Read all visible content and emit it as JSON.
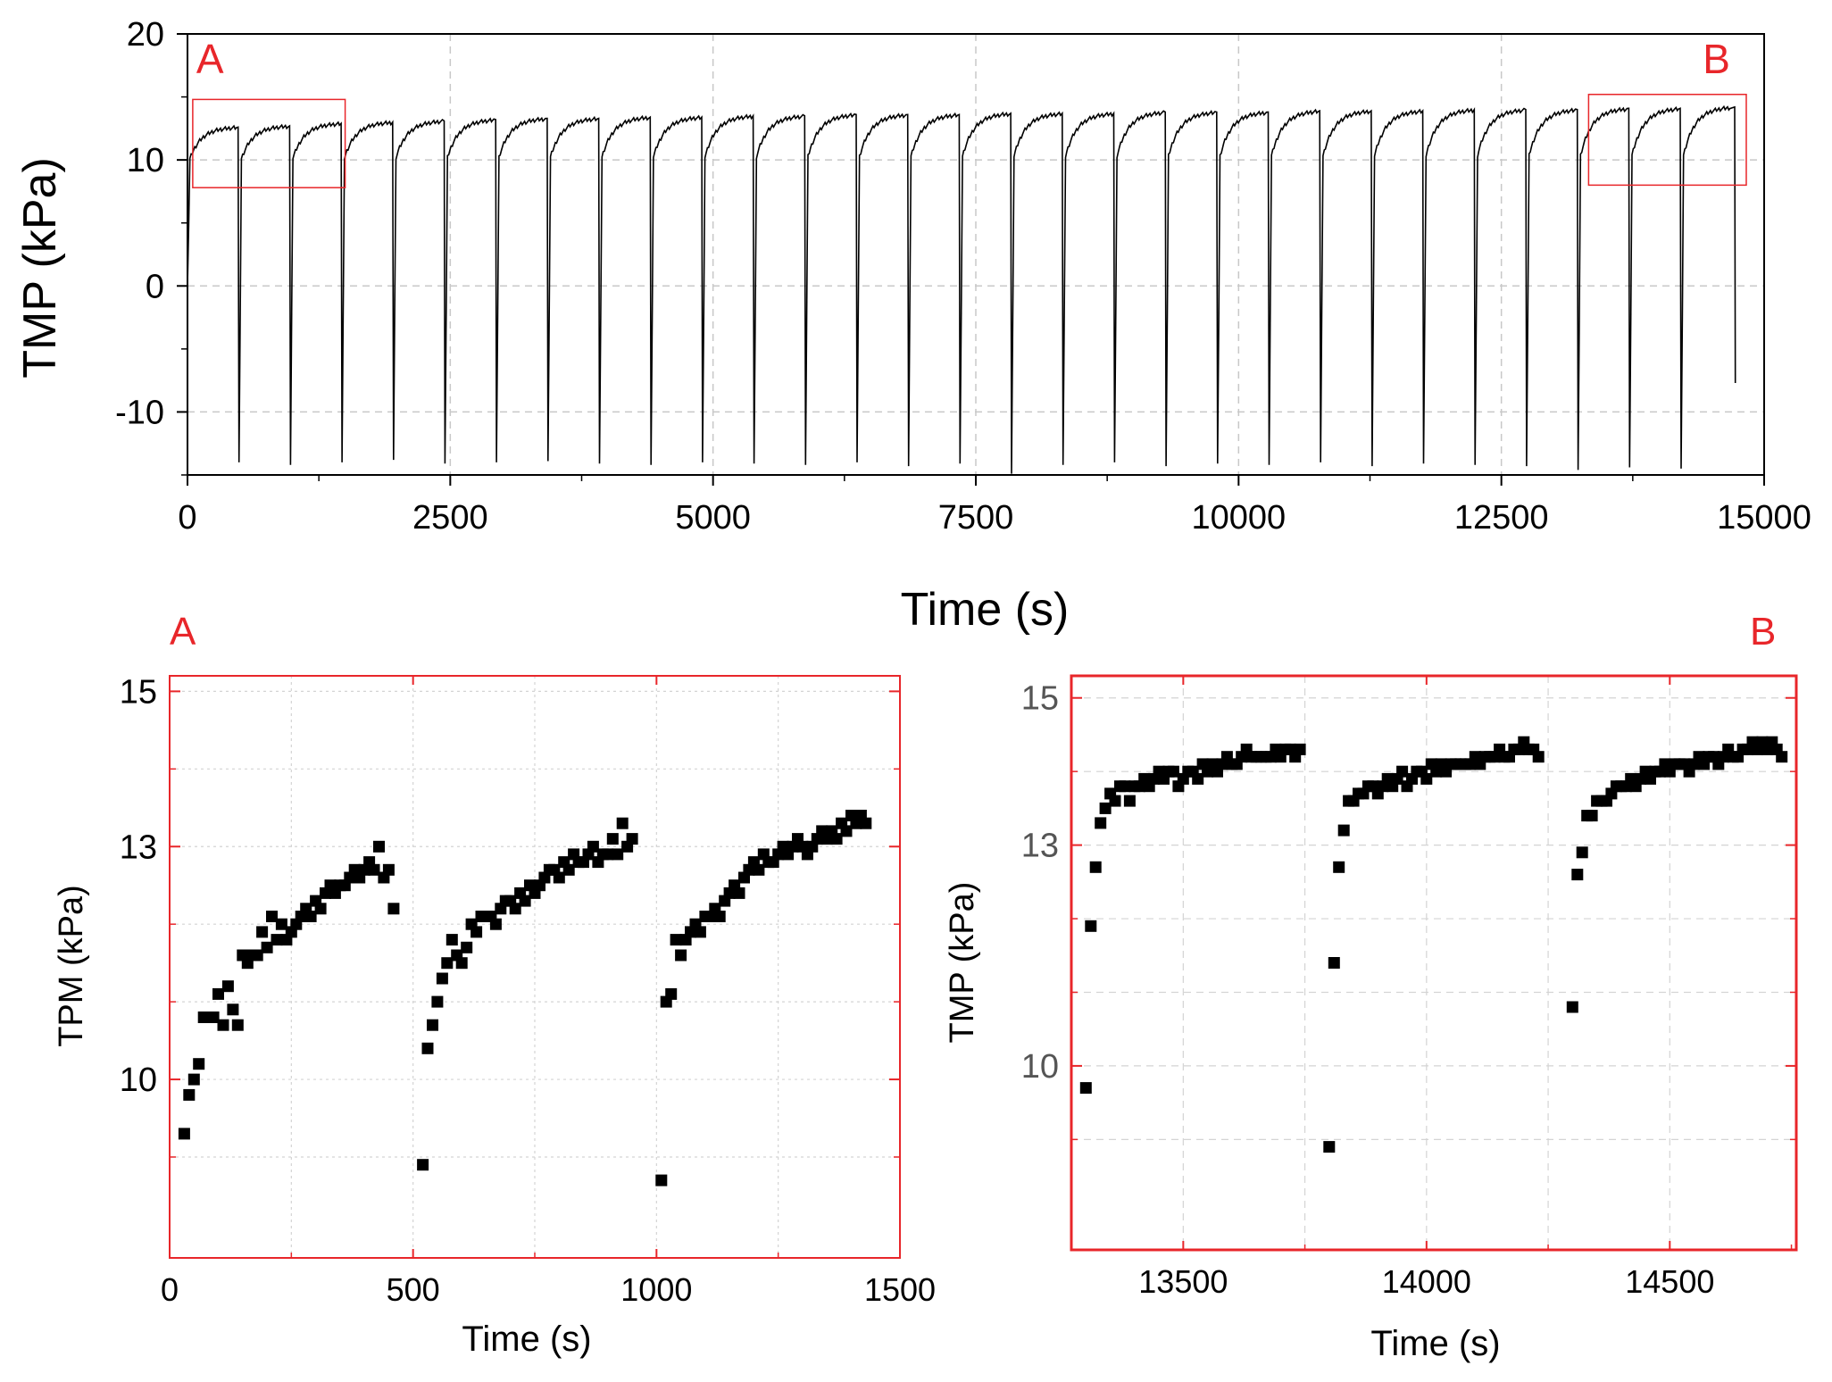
{
  "chart_data": [
    {
      "id": "main",
      "type": "line",
      "title": "",
      "xlabel": "Time (s)",
      "ylabel": "TMP (kPa)",
      "xlim": [
        0,
        15000
      ],
      "ylim": [
        -15,
        20
      ],
      "xticks": [
        0,
        2500,
        5000,
        7500,
        10000,
        12500,
        15000
      ],
      "xtick_labels": [
        "0",
        "2500",
        "5000",
        "7500",
        "10000",
        "12500",
        "15000"
      ],
      "yticks": [
        -10,
        0,
        10,
        20
      ],
      "ytick_labels": [
        "-10",
        "0",
        "10",
        "20"
      ],
      "grid": true,
      "cycle_period_s": 490,
      "cycles": [
        {
          "start": 0,
          "peak": 12.6,
          "dip": -13.5
        },
        {
          "start": 490,
          "peak": 12.7,
          "dip": -14.0
        },
        {
          "start": 980,
          "peak": 12.9,
          "dip": -14.2
        },
        {
          "start": 1470,
          "peak": 13.0,
          "dip": -14.0
        },
        {
          "start": 1960,
          "peak": 13.1,
          "dip": -13.8
        },
        {
          "start": 2450,
          "peak": 13.2,
          "dip": -14.1
        },
        {
          "start": 2940,
          "peak": 13.3,
          "dip": -14.0
        },
        {
          "start": 3430,
          "peak": 13.3,
          "dip": -13.9
        },
        {
          "start": 3920,
          "peak": 13.4,
          "dip": -14.1
        },
        {
          "start": 4410,
          "peak": 13.4,
          "dip": -14.2
        },
        {
          "start": 4900,
          "peak": 13.5,
          "dip": -14.0
        },
        {
          "start": 5390,
          "peak": 13.5,
          "dip": -14.1
        },
        {
          "start": 5880,
          "peak": 13.6,
          "dip": -14.2
        },
        {
          "start": 6370,
          "peak": 13.6,
          "dip": -14.0
        },
        {
          "start": 6860,
          "peak": 13.6,
          "dip": -14.3
        },
        {
          "start": 7350,
          "peak": 13.7,
          "dip": -14.1
        },
        {
          "start": 7840,
          "peak": 13.7,
          "dip": -14.9
        },
        {
          "start": 8330,
          "peak": 13.7,
          "dip": -14.2
        },
        {
          "start": 8820,
          "peak": 13.8,
          "dip": -14.0
        },
        {
          "start": 9310,
          "peak": 13.8,
          "dip": -14.3
        },
        {
          "start": 9800,
          "peak": 13.8,
          "dip": -14.1
        },
        {
          "start": 10290,
          "peak": 13.9,
          "dip": -14.2
        },
        {
          "start": 10780,
          "peak": 13.9,
          "dip": -14.0
        },
        {
          "start": 11270,
          "peak": 13.9,
          "dip": -14.3
        },
        {
          "start": 11760,
          "peak": 14.0,
          "dip": -14.1
        },
        {
          "start": 12250,
          "peak": 14.0,
          "dip": -14.2
        },
        {
          "start": 12740,
          "peak": 14.0,
          "dip": -14.3
        },
        {
          "start": 13230,
          "peak": 14.1,
          "dip": -14.6
        },
        {
          "start": 13720,
          "peak": 14.1,
          "dip": -14.4
        },
        {
          "start": 14210,
          "peak": 14.2,
          "dip": -14.5
        }
      ],
      "end_time": 14720,
      "end_value": -7.7,
      "regions": [
        {
          "label": "A",
          "x0": 50,
          "x1": 1500,
          "y0": 7.8,
          "y1": 14.8
        },
        {
          "label": "B",
          "x0": 13330,
          "x1": 14830,
          "y0": 8.0,
          "y1": 15.2
        }
      ]
    },
    {
      "id": "A",
      "panel_label": "A",
      "type": "scatter",
      "xlabel": "Time (s)",
      "ylabel": "TPM (kPa)",
      "xlim": [
        0,
        1500
      ],
      "ylim": [
        7.7,
        15.2
      ],
      "xticks": [
        0,
        500,
        1000,
        1500
      ],
      "xtick_labels": [
        "0",
        "500",
        "1000",
        "1500"
      ],
      "yticks": [
        10,
        13,
        15
      ],
      "ytick_labels": [
        "10",
        "13",
        "15"
      ],
      "grid": true,
      "frame_color": "#e8262a",
      "x": [
        30,
        40,
        50,
        60,
        70,
        80,
        90,
        100,
        110,
        120,
        130,
        140,
        150,
        160,
        170,
        180,
        190,
        200,
        210,
        220,
        230,
        240,
        250,
        260,
        270,
        280,
        290,
        300,
        310,
        320,
        330,
        340,
        350,
        360,
        370,
        380,
        390,
        400,
        410,
        420,
        430,
        440,
        450,
        460,
        520,
        530,
        540,
        550,
        560,
        570,
        580,
        590,
        600,
        610,
        620,
        630,
        640,
        650,
        660,
        670,
        680,
        690,
        700,
        710,
        720,
        730,
        740,
        750,
        760,
        770,
        780,
        790,
        800,
        810,
        820,
        830,
        840,
        850,
        860,
        870,
        880,
        890,
        900,
        910,
        920,
        930,
        940,
        950,
        1010,
        1020,
        1030,
        1040,
        1050,
        1060,
        1070,
        1080,
        1090,
        1100,
        1110,
        1120,
        1130,
        1140,
        1150,
        1160,
        1170,
        1180,
        1190,
        1200,
        1210,
        1220,
        1230,
        1240,
        1250,
        1260,
        1270,
        1280,
        1290,
        1300,
        1310,
        1320,
        1330,
        1340,
        1350,
        1360,
        1370,
        1380,
        1390,
        1400,
        1410,
        1420,
        1430
      ],
      "y": [
        9.3,
        9.8,
        10.0,
        10.2,
        10.8,
        10.8,
        10.8,
        11.1,
        10.7,
        11.2,
        10.9,
        10.7,
        11.6,
        11.5,
        11.6,
        11.6,
        11.9,
        11.7,
        12.1,
        11.8,
        12.0,
        11.8,
        11.9,
        12.0,
        12.1,
        12.2,
        12.1,
        12.3,
        12.2,
        12.4,
        12.5,
        12.4,
        12.5,
        12.5,
        12.6,
        12.7,
        12.6,
        12.7,
        12.8,
        12.7,
        13.0,
        12.6,
        12.7,
        12.2,
        8.9,
        10.4,
        10.7,
        11.0,
        11.3,
        11.5,
        11.8,
        11.6,
        11.5,
        11.7,
        12.0,
        11.9,
        12.1,
        12.1,
        12.1,
        12.0,
        12.2,
        12.3,
        12.3,
        12.2,
        12.4,
        12.3,
        12.5,
        12.4,
        12.5,
        12.6,
        12.7,
        12.7,
        12.6,
        12.8,
        12.7,
        12.9,
        12.8,
        12.8,
        12.9,
        13.0,
        12.8,
        12.9,
        12.9,
        13.1,
        12.9,
        13.3,
        13.0,
        13.1,
        8.7,
        11.0,
        11.1,
        11.8,
        11.6,
        11.8,
        11.9,
        12.0,
        11.9,
        12.1,
        12.1,
        12.2,
        12.1,
        12.3,
        12.4,
        12.5,
        12.4,
        12.6,
        12.7,
        12.8,
        12.7,
        12.9,
        12.8,
        12.8,
        12.9,
        13.0,
        12.9,
        13.0,
        13.1,
        13.0,
        12.9,
        13.0,
        13.1,
        13.2,
        13.1,
        13.2,
        13.1,
        13.3,
        13.2,
        13.4,
        13.3,
        13.4,
        13.3
      ]
    },
    {
      "id": "B",
      "panel_label": "B",
      "type": "scatter",
      "xlabel": "Time (s)",
      "ylabel": "TMP (kPa)",
      "xlim": [
        13270,
        14760
      ],
      "ylim": [
        7.5,
        15.3
      ],
      "xticks": [
        13500,
        14000,
        14500
      ],
      "xtick_labels": [
        "13500",
        "14000",
        "14500"
      ],
      "yticks": [
        10,
        13,
        15
      ],
      "ytick_labels": [
        "10",
        "13",
        "15"
      ],
      "grid": true,
      "frame_color": "#e8262a",
      "x": [
        13300,
        13310,
        13320,
        13330,
        13340,
        13350,
        13360,
        13370,
        13380,
        13390,
        13400,
        13410,
        13420,
        13430,
        13440,
        13450,
        13460,
        13470,
        13480,
        13490,
        13500,
        13510,
        13520,
        13530,
        13540,
        13550,
        13560,
        13570,
        13580,
        13590,
        13600,
        13610,
        13620,
        13630,
        13640,
        13650,
        13660,
        13670,
        13680,
        13690,
        13700,
        13710,
        13720,
        13730,
        13740,
        13800,
        13810,
        13820,
        13830,
        13840,
        13850,
        13860,
        13870,
        13880,
        13890,
        13900,
        13910,
        13920,
        13930,
        13940,
        13950,
        13960,
        13970,
        13980,
        13990,
        14000,
        14010,
        14020,
        14030,
        14040,
        14050,
        14060,
        14070,
        14080,
        14090,
        14100,
        14110,
        14120,
        14130,
        14140,
        14150,
        14160,
        14170,
        14180,
        14190,
        14200,
        14210,
        14220,
        14230,
        14300,
        14310,
        14320,
        14330,
        14340,
        14350,
        14360,
        14370,
        14380,
        14390,
        14400,
        14410,
        14420,
        14430,
        14440,
        14450,
        14460,
        14470,
        14480,
        14490,
        14500,
        14510,
        14520,
        14530,
        14540,
        14550,
        14560,
        14570,
        14580,
        14590,
        14600,
        14610,
        14620,
        14630,
        14640,
        14650,
        14660,
        14670,
        14680,
        14690,
        14700,
        14710,
        14720,
        14730
      ],
      "y": [
        9.7,
        11.9,
        12.7,
        13.3,
        13.5,
        13.7,
        13.6,
        13.8,
        13.8,
        13.6,
        13.8,
        13.8,
        13.9,
        13.8,
        13.9,
        14.0,
        13.9,
        14.0,
        14.0,
        13.8,
        13.9,
        14.0,
        14.0,
        13.9,
        14.1,
        14.0,
        14.1,
        14.0,
        14.1,
        14.2,
        14.1,
        14.1,
        14.2,
        14.3,
        14.2,
        14.2,
        14.2,
        14.2,
        14.2,
        14.3,
        14.2,
        14.3,
        14.3,
        14.2,
        14.3,
        8.9,
        11.4,
        12.7,
        13.2,
        13.6,
        13.6,
        13.7,
        13.7,
        13.8,
        13.8,
        13.7,
        13.8,
        13.9,
        13.8,
        13.9,
        14.0,
        13.8,
        13.9,
        14.0,
        14.0,
        13.9,
        14.1,
        14.0,
        14.1,
        14.0,
        14.1,
        14.1,
        14.1,
        14.1,
        14.1,
        14.2,
        14.1,
        14.2,
        14.2,
        14.2,
        14.3,
        14.2,
        14.2,
        14.3,
        14.3,
        14.4,
        14.3,
        14.3,
        14.2,
        10.8,
        12.6,
        12.9,
        13.4,
        13.4,
        13.6,
        13.6,
        13.6,
        13.7,
        13.8,
        13.8,
        13.8,
        13.9,
        13.8,
        13.9,
        14.0,
        13.9,
        14.0,
        14.0,
        14.1,
        14.0,
        14.1,
        14.1,
        14.1,
        14.0,
        14.1,
        14.2,
        14.1,
        14.2,
        14.2,
        14.1,
        14.2,
        14.3,
        14.2,
        14.2,
        14.3,
        14.3,
        14.4,
        14.3,
        14.4,
        14.3,
        14.4,
        14.3,
        14.2
      ]
    }
  ]
}
